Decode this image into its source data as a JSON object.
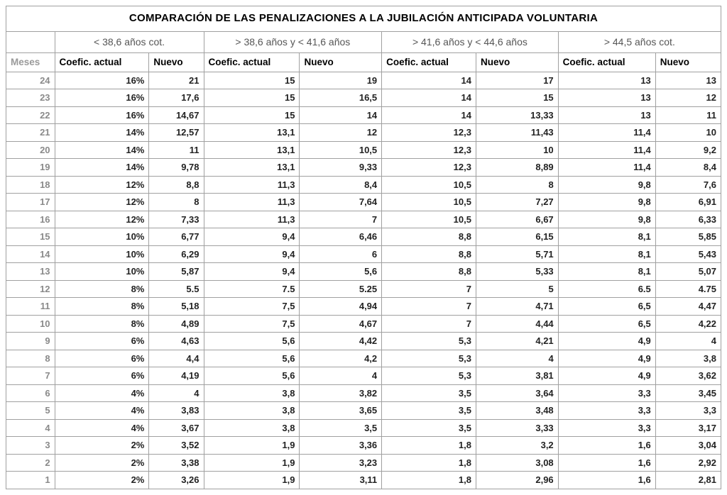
{
  "title": "COMPARACIÓN DE LAS PENALIZACIONES A LA JUBILACIÓN ANTICIPADA VOLUNTARIA",
  "meses_header": "Meses",
  "bands": [
    {
      "label": "< 38,6 años cot.",
      "col_a": "Coefic. actual",
      "col_b": "Nuevo"
    },
    {
      "label": "> 38,6 años  y < 41,6 años",
      "col_a": "Coefic. actual",
      "col_b": "Nuevo"
    },
    {
      "label": "> 41,6 años  y < 44,6 años",
      "col_a": "Coefic. actual",
      "col_b": "Nuevo"
    },
    {
      "label": "> 44,5 años cot.",
      "col_a": "Coefic. actual",
      "col_b": "Nuevo"
    }
  ],
  "rows": [
    {
      "m": "24",
      "a1": "16%",
      "b1": "21",
      "a2": "15",
      "b2": "19",
      "a3": "14",
      "b3": "17",
      "a4": "13",
      "b4": "13"
    },
    {
      "m": "23",
      "a1": "16%",
      "b1": "17,6",
      "a2": "15",
      "b2": "16,5",
      "a3": "14",
      "b3": "15",
      "a4": "13",
      "b4": "12"
    },
    {
      "m": "22",
      "a1": "16%",
      "b1": "14,67",
      "a2": "15",
      "b2": "14",
      "a3": "14",
      "b3": "13,33",
      "a4": "13",
      "b4": "11"
    },
    {
      "m": "21",
      "a1": "14%",
      "b1": "12,57",
      "a2": "13,1",
      "b2": "12",
      "a3": "12,3",
      "b3": "11,43",
      "a4": "11,4",
      "b4": "10"
    },
    {
      "m": "20",
      "a1": "14%",
      "b1": "11",
      "a2": "13,1",
      "b2": "10,5",
      "a3": "12,3",
      "b3": "10",
      "a4": "11,4",
      "b4": "9,2"
    },
    {
      "m": "19",
      "a1": "14%",
      "b1": "9,78",
      "a2": "13,1",
      "b2": "9,33",
      "a3": "12,3",
      "b3": "8,89",
      "a4": "11,4",
      "b4": "8,4"
    },
    {
      "m": "18",
      "a1": "12%",
      "b1": "8,8",
      "a2": "11,3",
      "b2": "8,4",
      "a3": "10,5",
      "b3": "8",
      "a4": "9,8",
      "b4": "7,6"
    },
    {
      "m": "17",
      "a1": "12%",
      "b1": "8",
      "a2": "11,3",
      "b2": "7,64",
      "a3": "10,5",
      "b3": "7,27",
      "a4": "9,8",
      "b4": "6,91"
    },
    {
      "m": "16",
      "a1": "12%",
      "b1": "7,33",
      "a2": "11,3",
      "b2": "7",
      "a3": "10,5",
      "b3": "6,67",
      "a4": "9,8",
      "b4": "6,33"
    },
    {
      "m": "15",
      "a1": "10%",
      "b1": "6,77",
      "a2": "9,4",
      "b2": "6,46",
      "a3": "8,8",
      "b3": "6,15",
      "a4": "8,1",
      "b4": "5,85"
    },
    {
      "m": "14",
      "a1": "10%",
      "b1": "6,29",
      "a2": "9,4",
      "b2": "6",
      "a3": "8,8",
      "b3": "5,71",
      "a4": "8,1",
      "b4": "5,43"
    },
    {
      "m": "13",
      "a1": "10%",
      "b1": "5,87",
      "a2": "9,4",
      "b2": "5,6",
      "a3": "8,8",
      "b3": "5,33",
      "a4": "8,1",
      "b4": "5,07"
    },
    {
      "m": "12",
      "a1": "8%",
      "b1": "5.5",
      "a2": "7.5",
      "b2": "5.25",
      "a3": "7",
      "b3": "5",
      "a4": "6.5",
      "b4": "4.75"
    },
    {
      "m": "11",
      "a1": "8%",
      "b1": "5,18",
      "a2": "7,5",
      "b2": "4,94",
      "a3": "7",
      "b3": "4,71",
      "a4": "6,5",
      "b4": "4,47"
    },
    {
      "m": "10",
      "a1": "8%",
      "b1": "4,89",
      "a2": "7,5",
      "b2": "4,67",
      "a3": "7",
      "b3": "4,44",
      "a4": "6,5",
      "b4": "4,22"
    },
    {
      "m": "9",
      "a1": "6%",
      "b1": "4,63",
      "a2": "5,6",
      "b2": "4,42",
      "a3": "5,3",
      "b3": "4,21",
      "a4": "4,9",
      "b4": "4"
    },
    {
      "m": "8",
      "a1": "6%",
      "b1": "4,4",
      "a2": "5,6",
      "b2": "4,2",
      "a3": "5,3",
      "b3": "4",
      "a4": "4,9",
      "b4": "3,8"
    },
    {
      "m": "7",
      "a1": "6%",
      "b1": "4,19",
      "a2": "5,6",
      "b2": "4",
      "a3": "5,3",
      "b3": "3,81",
      "a4": "4,9",
      "b4": "3,62"
    },
    {
      "m": "6",
      "a1": "4%",
      "b1": "4",
      "a2": "3,8",
      "b2": "3,82",
      "a3": "3,5",
      "b3": "3,64",
      "a4": "3,3",
      "b4": "3,45"
    },
    {
      "m": "5",
      "a1": "4%",
      "b1": "3,83",
      "a2": "3,8",
      "b2": "3,65",
      "a3": "3,5",
      "b3": "3,48",
      "a4": "3,3",
      "b4": "3,3"
    },
    {
      "m": "4",
      "a1": "4%",
      "b1": "3,67",
      "a2": "3,8",
      "b2": "3,5",
      "a3": "3,5",
      "b3": "3,33",
      "a4": "3,3",
      "b4": "3,17"
    },
    {
      "m": "3",
      "a1": "2%",
      "b1": "3,52",
      "a2": "1,9",
      "b2": "3,36",
      "a3": "1,8",
      "b3": "3,2",
      "a4": "1,6",
      "b4": "3,04"
    },
    {
      "m": "2",
      "a1": "2%",
      "b1": "3,38",
      "a2": "1,9",
      "b2": "3,23",
      "a3": "1,8",
      "b3": "3,08",
      "a4": "1,6",
      "b4": "2,92"
    },
    {
      "m": "1",
      "a1": "2%",
      "b1": "3,26",
      "a2": "1,9",
      "b2": "3,11",
      "a3": "1,8",
      "b3": "2,96",
      "a4": "1,6",
      "b4": "2,81"
    }
  ]
}
